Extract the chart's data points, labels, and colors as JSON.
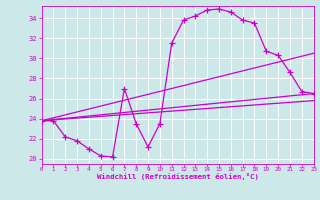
{
  "xlabel": "Windchill (Refroidissement éolien,°C)",
  "bg_color": "#cce8e8",
  "grid_color": "#ffffff",
  "line_color": "#cc00cc",
  "xlim": [
    0,
    23
  ],
  "ylim": [
    19.5,
    35.2
  ],
  "yticks": [
    20,
    22,
    24,
    26,
    28,
    30,
    32,
    34
  ],
  "xticks": [
    0,
    1,
    2,
    3,
    4,
    5,
    6,
    7,
    8,
    9,
    10,
    11,
    12,
    13,
    14,
    15,
    16,
    17,
    18,
    19,
    20,
    21,
    22,
    23
  ],
  "curve_x": [
    0,
    1,
    2,
    3,
    4,
    5,
    6,
    7,
    8,
    9,
    10,
    11,
    12,
    13,
    14,
    15,
    16,
    17,
    18,
    19,
    20,
    21,
    22,
    23
  ],
  "curve_y": [
    23.8,
    23.8,
    22.2,
    21.8,
    21.0,
    20.3,
    20.2,
    27.0,
    23.5,
    21.2,
    23.5,
    31.5,
    33.8,
    34.2,
    34.8,
    34.9,
    34.6,
    33.8,
    33.5,
    30.7,
    30.3,
    28.6,
    26.7,
    26.5
  ],
  "straight_lines": [
    {
      "x0": 0,
      "y0": 23.8,
      "x1": 23,
      "y1": 26.5
    },
    {
      "x0": 0,
      "y0": 23.8,
      "x1": 23,
      "y1": 30.5
    },
    {
      "x0": 0,
      "y0": 23.8,
      "x1": 23,
      "y1": 25.8
    }
  ]
}
